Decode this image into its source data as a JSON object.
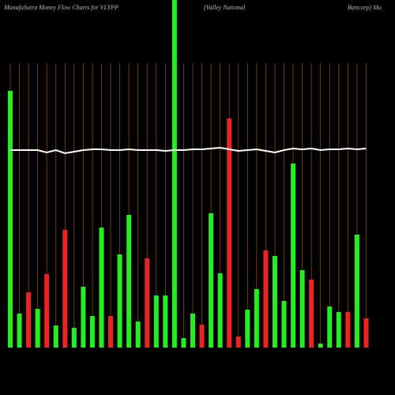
{
  "chart_data": {
    "type": "bar",
    "title": "MunafaSutra  Money Flow  Charts for VLYPP",
    "title_mid": "(Valley National",
    "title_right": "Bancorp) Mu",
    "categories": [
      null,
      null,
      null,
      null,
      null,
      null,
      null,
      null,
      null,
      null,
      null,
      null,
      null,
      null,
      null,
      null,
      null,
      null,
      null,
      null,
      null,
      null,
      null,
      null,
      null,
      null,
      null,
      null,
      null,
      null,
      null,
      null,
      null,
      null,
      null,
      null,
      null,
      null,
      null,
      null
    ],
    "series": [
      {
        "name": null,
        "type": "bar",
        "values": [
          325,
          43,
          70,
          49,
          93,
          28,
          149,
          25,
          77,
          40,
          152,
          40,
          118,
          168,
          33,
          113,
          66,
          66,
          440,
          12,
          43,
          29,
          170,
          94,
          290,
          14,
          48,
          74,
          123,
          116,
          59,
          233,
          98,
          86,
          5,
          52,
          45,
          45,
          143,
          37
        ],
        "colors": [
          "#22ee22",
          "#22ee22",
          "#ee2222",
          "#22ee22",
          "#ee2222",
          "#22ee22",
          "#ee2222",
          "#22ee22",
          "#22ee22",
          "#22ee22",
          "#22ee22",
          "#ee2222",
          "#22ee22",
          "#22ee22",
          "#22ee22",
          "#ee2222",
          "#22ee22",
          "#22ee22",
          "#22ee22",
          "#22ee22",
          "#22ee22",
          "#ee2222",
          "#22ee22",
          "#22ee22",
          "#ee2222",
          "#ee2222",
          "#22ee22",
          "#22ee22",
          "#ee2222",
          "#22ee22",
          "#22ee22",
          "#22ee22",
          "#22ee22",
          "#ee2222",
          "#22ee22",
          "#22ee22",
          "#22ee22",
          "#ee2222",
          "#22ee22",
          "#ee2222"
        ]
      },
      {
        "name": null,
        "type": "line",
        "color": "#ffffff",
        "values": [
          250,
          250,
          250,
          250,
          247,
          250,
          246,
          248,
          250,
          251,
          251,
          250,
          250,
          251,
          250,
          250,
          250,
          249,
          250,
          250,
          251,
          251,
          252,
          253,
          251,
          249,
          250,
          251,
          249,
          247,
          250,
          252,
          251,
          252,
          250,
          251,
          251,
          252,
          251,
          252
        ]
      }
    ]
  }
}
